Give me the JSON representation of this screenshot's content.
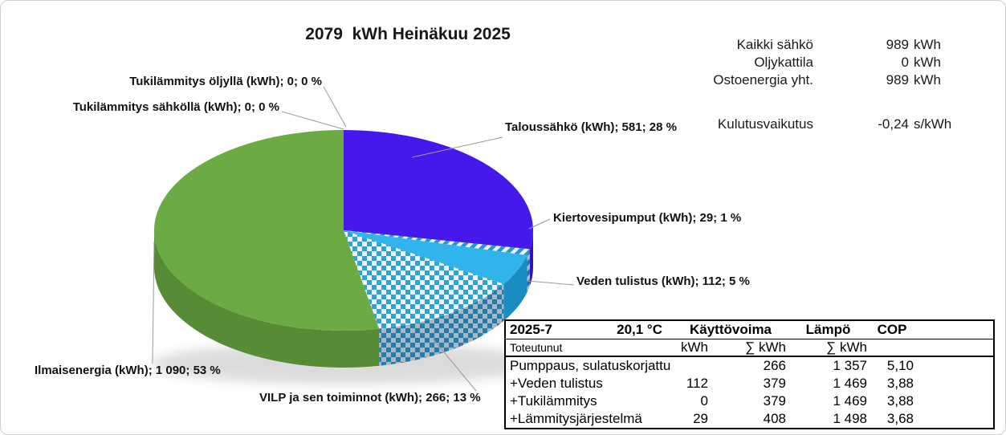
{
  "title": "2079  kWh Heinäkuu 2025",
  "stats": {
    "rows": [
      {
        "label": "Kaikki sähkö",
        "value": "989",
        "unit": "kWh"
      },
      {
        "label": "Oljykattila",
        "value": "0",
        "unit": "kWh"
      },
      {
        "label": "Ostoenergia yht.",
        "value": "989",
        "unit": "kWh"
      }
    ],
    "impact": {
      "label": "Kulutusvaikutus",
      "value": "-0,24",
      "unit": "s/kWh"
    }
  },
  "chart_data": {
    "type": "pie",
    "title": "2079  kWh Heinäkuu 2025",
    "unit": "kWh",
    "total_kwh": 2079,
    "start_angle_deg": 0,
    "direction": "clockwise",
    "style": "3d",
    "slices": [
      {
        "key": "tukilammitys-oljylla",
        "name": "Tukilämmitys öljyllä",
        "label": "Tukilämmitys öljyllä (kWh); 0; 0 %",
        "kwh": 0,
        "percent": 0
      },
      {
        "key": "tukilammitys-sahkolla",
        "name": "Tukilämmitys sähköllä",
        "label": "Tukilämmitys sähköllä (kWh); 0; 0 %",
        "kwh": 0,
        "percent": 0
      },
      {
        "key": "taloussahko",
        "name": "Taloussähkö",
        "label": "Taloussähkö (kWh); 581; 28 %",
        "kwh": 581,
        "percent": 28,
        "color": "#4618ec",
        "wall": "#3012c0",
        "pattern": "solid"
      },
      {
        "key": "kiertovesipumput",
        "name": "Kiertovesipumput",
        "label": "Kiertovesipumput (kWh); 29; 1 %",
        "kwh": 29,
        "percent": 1,
        "color": "#2795d2",
        "pattern": "stripe"
      },
      {
        "key": "veden-tulistus",
        "name": "Veden tulistus",
        "label": "Veden tulistus (kWh); 112; 5 %",
        "kwh": 112,
        "percent": 5,
        "color": "#31b4ec",
        "wall": "#1a8cc2",
        "pattern": "solid"
      },
      {
        "key": "vilp",
        "name": "VILP ja sen toiminnot",
        "label": "VILP ja sen toiminnot (kWh); 266; 13 %",
        "kwh": 266,
        "percent": 13,
        "color": "#2fa3d8",
        "pattern": "checker"
      },
      {
        "key": "ilmaisenergia",
        "name": "Ilmaisenergia",
        "label": "Ilmaisenergia (kWh); 1 090; 53 %",
        "kwh": 1090,
        "percent": 53,
        "color": "#6cab44",
        "wall": "#578b35",
        "pattern": "solid"
      }
    ]
  },
  "table": {
    "period": "2025-7",
    "temperature": "20,1 °C",
    "col_drive": "Käyttövoima",
    "col_heat": "Lämpö",
    "col_cop": "COP",
    "sub_label": "Toteutunut",
    "sub_kwh": "kWh",
    "sub_sum_drive": "∑ kWh",
    "sub_sum_heat": "∑ kWh",
    "rows": [
      {
        "label": "Pumppaus, sulatuskorjattu",
        "kwh": "",
        "sum_drive": "266",
        "sum_heat": "1 357",
        "cop": "5,10"
      },
      {
        "label": "+Veden tulistus",
        "kwh": "112",
        "sum_drive": "379",
        "sum_heat": "1 469",
        "cop": "3,88"
      },
      {
        "label": "+Tukilämmitys",
        "kwh": "0",
        "sum_drive": "379",
        "sum_heat": "1 469",
        "cop": "3,88"
      },
      {
        "label": "+Lämmitysjärjestelmä",
        "kwh": "29",
        "sum_drive": "408",
        "sum_heat": "1 498",
        "cop": "3,68"
      }
    ]
  }
}
